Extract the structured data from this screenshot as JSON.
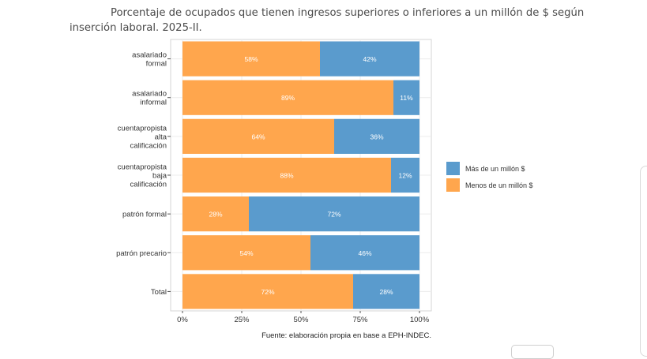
{
  "title": "Porcentaje de ocupados que tienen ingresos superiores o inferiores a un millón de $ según inserción laboral. 2025-II.",
  "chart_data": {
    "type": "bar",
    "orientation": "horizontal",
    "stacked": true,
    "categories": [
      [
        "asalariado",
        "formal"
      ],
      [
        "asalariado",
        "informal"
      ],
      [
        "cuentapropista",
        "alta",
        "calificación"
      ],
      [
        "cuentapropista",
        "baja",
        "calificación"
      ],
      [
        "patrón formal"
      ],
      [
        "patrón precario"
      ],
      [
        "Total"
      ]
    ],
    "series": [
      {
        "name": "Menos de un millón $",
        "color": "#FFA64D",
        "values": [
          58,
          89,
          64,
          88,
          28,
          54,
          72
        ],
        "labels": [
          "58%",
          "89%",
          "64%",
          "88%",
          "28%",
          "54%",
          "72%"
        ]
      },
      {
        "name": "Más de un millón $",
        "color": "#5A9BCD",
        "values": [
          42,
          11,
          36,
          12,
          72,
          46,
          28
        ],
        "labels": [
          "42%",
          "11%",
          "36%",
          "12%",
          "72%",
          "46%",
          "28%"
        ]
      }
    ],
    "xlim": [
      0,
      100
    ],
    "xticks": [
      0,
      25,
      50,
      75,
      100
    ],
    "xtick_labels": [
      "0%",
      "25%",
      "50%",
      "75%",
      "100%"
    ],
    "legend": {
      "position": "right",
      "entries": [
        {
          "label": "Más de un millón $",
          "color": "#5A9BCD"
        },
        {
          "label": "Menos de un millón $",
          "color": "#FFA64D"
        }
      ]
    },
    "grid": true,
    "caption": "Fuente: elaboración propia en base a EPH-INDEC."
  }
}
